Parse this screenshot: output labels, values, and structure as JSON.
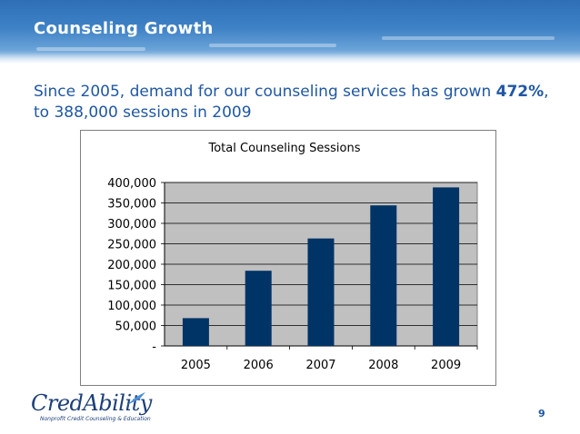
{
  "slide": {
    "title": "Counseling Growth",
    "subtitle_pre": "Since 2005, demand for our counseling services has grown ",
    "subtitle_bold": "472%",
    "subtitle_post": ", to 388,000 sessions in 2009",
    "page_number": "9"
  },
  "logo": {
    "wordmark": "CredAbility",
    "tagline": "Nonprofit Credit Counseling & Education"
  },
  "colors": {
    "bar": "#003366",
    "plot_bg": "#c0c0c0",
    "title_text": "#1f57a4"
  },
  "chart_data": {
    "type": "bar",
    "title": "Total Counseling Sessions",
    "categories": [
      "2005",
      "2006",
      "2007",
      "2008",
      "2009"
    ],
    "values": [
      68000,
      184000,
      263000,
      344000,
      388000
    ],
    "ylim": [
      0,
      400000
    ],
    "yticks": [
      0,
      50000,
      100000,
      150000,
      200000,
      250000,
      300000,
      350000,
      400000
    ],
    "ytick_labels": [
      "-",
      "50,000",
      "100,000",
      "150,000",
      "200,000",
      "250,000",
      "300,000",
      "350,000",
      "400,000"
    ],
    "grid": true,
    "legend": false
  }
}
